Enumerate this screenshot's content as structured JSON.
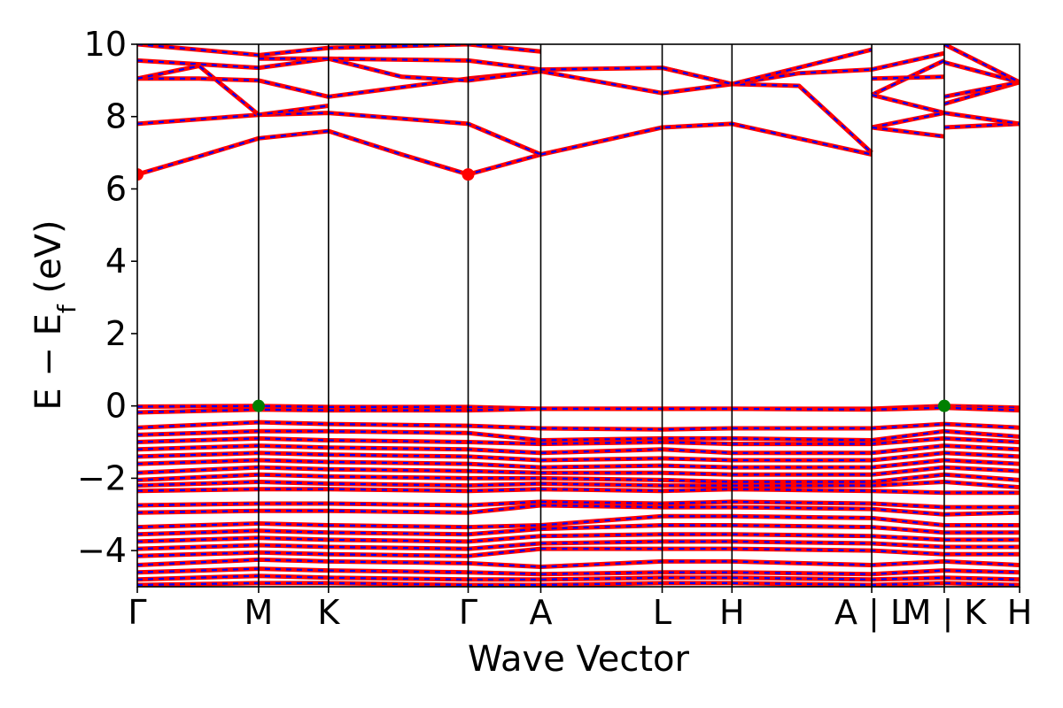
{
  "chart_data": {
    "type": "line",
    "title": "",
    "xlabel": "Wave Vector",
    "ylabel": "E − E_f (eV)",
    "ylabel_main": "E  −  E",
    "ylabel_sub": "f",
    "ylabel_tail": " (eV)",
    "ylim": [
      -5,
      10
    ],
    "yticks": [
      -4,
      -2,
      0,
      2,
      4,
      6,
      8,
      10
    ],
    "ytick_labels": [
      "−4",
      "−2",
      "0",
      "2",
      "4",
      "6",
      "8",
      "10"
    ],
    "kpath_ticks": [
      {
        "label": "Γ",
        "x": 0.0
      },
      {
        "label": "M",
        "x": 0.1375
      },
      {
        "label": "K",
        "x": 0.2167
      },
      {
        "label": "Γ",
        "x": 0.375
      },
      {
        "label": "A",
        "x": 0.4573
      },
      {
        "label": "L",
        "x": 0.5949
      },
      {
        "label": "H",
        "x": 0.674
      },
      {
        "label": "A | L",
        "x": 0.8324
      },
      {
        "label": "M | K",
        "x": 0.9146
      },
      {
        "label": "H",
        "x": 1.0
      }
    ],
    "series_colors": {
      "primary": "#ff0000",
      "secondary": "#0000ff",
      "vbm_marker": "#008000",
      "cbm_marker": "#ff0000"
    },
    "cbm_points": [
      {
        "x": 0.0,
        "y": 6.4
      },
      {
        "x": 0.375,
        "y": 6.4
      }
    ],
    "vbm_points": [
      {
        "x": 0.1375,
        "y": 0.0
      },
      {
        "x": 0.9146,
        "y": 0.0
      }
    ],
    "conduction_bands": [
      {
        "x": [
          0.0,
          0.07,
          0.1375,
          0.2167,
          0.3,
          0.375,
          0.4573
        ],
        "y": [
          6.4,
          6.9,
          7.4,
          7.6,
          6.95,
          6.4,
          6.95
        ]
      },
      {
        "x": [
          0.4573,
          0.5949,
          0.674,
          0.8324
        ],
        "y": [
          6.95,
          7.7,
          7.8,
          6.95
        ]
      },
      {
        "x": [
          0.0,
          0.1375,
          0.2167,
          0.375,
          0.4573
        ],
        "y": [
          7.8,
          8.05,
          8.1,
          7.8,
          6.95
        ]
      },
      {
        "x": [
          0.0,
          0.07,
          0.1375,
          0.2167,
          0.375,
          0.4573,
          0.5949,
          0.674,
          0.75,
          0.8324
        ],
        "y": [
          9.05,
          9.05,
          9.0,
          8.55,
          9.05,
          9.25,
          8.65,
          8.9,
          9.2,
          9.3
        ]
      },
      {
        "x": [
          0.0,
          0.1375,
          0.2167,
          0.375,
          0.4573,
          0.5949,
          0.674,
          0.75,
          0.8324
        ],
        "y": [
          9.55,
          9.35,
          9.6,
          9.55,
          9.3,
          9.35,
          8.9,
          8.85,
          7.0
        ]
      },
      {
        "x": [
          0.0,
          0.1375,
          0.2167,
          0.375,
          0.4573
        ],
        "y": [
          10.0,
          9.7,
          9.9,
          10.0,
          9.8
        ]
      },
      {
        "x": [
          0.0,
          0.07,
          0.1375,
          0.2167
        ],
        "y": [
          9.05,
          9.4,
          8.05,
          8.3
        ]
      },
      {
        "x": [
          0.1375,
          0.2167,
          0.3,
          0.375,
          0.4573
        ],
        "y": [
          9.6,
          9.6,
          9.1,
          9.0,
          9.25
        ]
      },
      {
        "x": [
          0.5949,
          0.674,
          0.8324
        ],
        "y": [
          9.35,
          8.9,
          9.85
        ]
      },
      {
        "x": [
          0.8324,
          0.9146
        ],
        "y": [
          9.3,
          9.75
        ]
      },
      {
        "x": [
          0.8324,
          0.9146
        ],
        "y": [
          8.6,
          9.55
        ]
      },
      {
        "x": [
          0.8324,
          0.9146
        ],
        "y": [
          8.6,
          8.1
        ]
      },
      {
        "x": [
          0.8324,
          0.9146
        ],
        "y": [
          7.7,
          8.1
        ]
      },
      {
        "x": [
          0.8324,
          0.9146
        ],
        "y": [
          7.7,
          7.45
        ]
      },
      {
        "x": [
          0.8324,
          0.9146
        ],
        "y": [
          9.05,
          9.1
        ]
      },
      {
        "x": [
          0.9146,
          1.0
        ],
        "y": [
          7.7,
          7.8
        ]
      },
      {
        "x": [
          0.9146,
          1.0
        ],
        "y": [
          8.1,
          7.8
        ]
      },
      {
        "x": [
          0.9146,
          1.0
        ],
        "y": [
          8.35,
          8.95
        ]
      },
      {
        "x": [
          0.9146,
          1.0
        ],
        "y": [
          8.55,
          8.95
        ]
      },
      {
        "x": [
          0.9146,
          1.0
        ],
        "y": [
          9.5,
          8.95
        ]
      },
      {
        "x": [
          0.9146,
          1.0
        ],
        "y": [
          10.0,
          8.95
        ]
      }
    ],
    "valence_bands": [
      {
        "x": [
          0.0,
          0.1375,
          0.2167,
          0.375,
          0.4573,
          0.5949,
          0.674,
          0.8324,
          0.9146,
          1.0
        ],
        "y": [
          -0.02,
          0.0,
          -0.03,
          -0.03,
          -0.08,
          -0.08,
          -0.08,
          -0.08,
          0.0,
          -0.05
        ]
      },
      {
        "x": [
          0.0,
          0.1375,
          0.2167,
          0.375,
          0.4573,
          0.5949,
          0.674,
          0.8324,
          0.9146,
          1.0
        ],
        "y": [
          -0.18,
          -0.1,
          -0.12,
          -0.12,
          -0.08,
          -0.08,
          -0.08,
          -0.1,
          -0.05,
          -0.12
        ]
      },
      {
        "x": [
          0.0,
          0.1375,
          0.2167,
          0.375,
          0.4573,
          0.5949,
          0.674,
          0.8324,
          0.9146,
          1.0
        ],
        "y": [
          -0.6,
          -0.45,
          -0.5,
          -0.55,
          -0.62,
          -0.65,
          -0.62,
          -0.62,
          -0.5,
          -0.6
        ]
      },
      {
        "x": [
          0.0,
          0.1375,
          0.2167,
          0.375,
          0.4573,
          0.5949,
          0.674,
          0.8324,
          0.9146,
          1.0
        ],
        "y": [
          -0.8,
          -0.7,
          -0.7,
          -0.75,
          -0.95,
          -0.9,
          -0.9,
          -0.95,
          -0.7,
          -0.85
        ]
      },
      {
        "x": [
          0.0,
          0.1375,
          0.2167,
          0.375,
          0.4573,
          0.5949,
          0.674,
          0.8324,
          0.9146,
          1.0
        ],
        "y": [
          -1.0,
          -0.9,
          -0.95,
          -1.0,
          -1.05,
          -1.0,
          -1.05,
          -1.05,
          -0.9,
          -1.0
        ]
      },
      {
        "x": [
          0.0,
          0.1375,
          0.2167,
          0.375,
          0.4573,
          0.5949,
          0.674,
          0.8324,
          0.9146,
          1.0
        ],
        "y": [
          -1.2,
          -1.1,
          -1.15,
          -1.2,
          -1.3,
          -1.2,
          -1.3,
          -1.3,
          -1.1,
          -1.2
        ]
      },
      {
        "x": [
          0.0,
          0.1375,
          0.2167,
          0.375,
          0.4573,
          0.5949,
          0.674,
          0.8324,
          0.9146,
          1.0
        ],
        "y": [
          -1.4,
          -1.3,
          -1.35,
          -1.4,
          -1.5,
          -1.45,
          -1.5,
          -1.5,
          -1.3,
          -1.4
        ]
      },
      {
        "x": [
          0.0,
          0.1375,
          0.2167,
          0.375,
          0.4573,
          0.5949,
          0.674,
          0.8324,
          0.9146,
          1.0
        ],
        "y": [
          -1.6,
          -1.5,
          -1.55,
          -1.6,
          -1.7,
          -1.65,
          -1.7,
          -1.7,
          -1.5,
          -1.6
        ]
      },
      {
        "x": [
          0.0,
          0.1375,
          0.2167,
          0.375,
          0.4573,
          0.5949,
          0.674,
          0.8324,
          0.9146,
          1.0
        ],
        "y": [
          -1.85,
          -1.7,
          -1.75,
          -1.8,
          -1.85,
          -1.85,
          -1.9,
          -1.9,
          -1.7,
          -1.8
        ]
      },
      {
        "x": [
          0.0,
          0.1375,
          0.2167,
          0.375,
          0.4573,
          0.5949,
          0.674,
          0.8324,
          0.9146,
          1.0
        ],
        "y": [
          -2.05,
          -1.9,
          -1.95,
          -2.0,
          -2.0,
          -2.05,
          -2.1,
          -2.1,
          -1.9,
          -2.05
        ]
      },
      {
        "x": [
          0.0,
          0.1375,
          0.2167,
          0.375,
          0.4573,
          0.5949,
          0.674,
          0.8324,
          0.9146,
          1.0
        ],
        "y": [
          -2.2,
          -2.1,
          -2.15,
          -2.2,
          -2.15,
          -2.2,
          -2.2,
          -2.2,
          -2.1,
          -2.25
        ]
      },
      {
        "x": [
          0.0,
          0.1375,
          0.2167,
          0.375,
          0.4573,
          0.5949,
          0.674,
          0.8324,
          0.9146,
          1.0
        ],
        "y": [
          -2.35,
          -2.3,
          -2.3,
          -2.35,
          -2.3,
          -2.35,
          -2.3,
          -2.35,
          -2.4,
          -2.4
        ]
      },
      {
        "x": [
          0.0,
          0.1375,
          0.2167,
          0.375,
          0.4573,
          0.5949,
          0.674,
          0.8324,
          0.9146,
          1.0
        ],
        "y": [
          -2.75,
          -2.7,
          -2.7,
          -2.75,
          -2.65,
          -2.7,
          -2.65,
          -2.7,
          -2.8,
          -2.8
        ]
      },
      {
        "x": [
          0.0,
          0.1375,
          0.2167,
          0.375,
          0.4573,
          0.5949,
          0.674,
          0.8324,
          0.9146,
          1.0
        ],
        "y": [
          -2.95,
          -2.9,
          -2.9,
          -2.95,
          -2.75,
          -2.8,
          -2.8,
          -2.85,
          -3.0,
          -2.95
        ]
      },
      {
        "x": [
          0.0,
          0.1375,
          0.2167,
          0.375,
          0.4573,
          0.5949,
          0.674,
          0.8324,
          0.9146,
          1.0
        ],
        "y": [
          -3.35,
          -3.25,
          -3.3,
          -3.35,
          -3.3,
          -3.05,
          -3.05,
          -3.1,
          -3.3,
          -3.3
        ]
      },
      {
        "x": [
          0.0,
          0.1375,
          0.2167,
          0.375,
          0.4573,
          0.5949,
          0.674,
          0.8324,
          0.9146,
          1.0
        ],
        "y": [
          -3.55,
          -3.45,
          -3.5,
          -3.55,
          -3.4,
          -3.3,
          -3.3,
          -3.35,
          -3.5,
          -3.5
        ]
      },
      {
        "x": [
          0.0,
          0.1375,
          0.2167,
          0.375,
          0.4573,
          0.5949,
          0.674,
          0.8324,
          0.9146,
          1.0
        ],
        "y": [
          -3.75,
          -3.65,
          -3.7,
          -3.75,
          -3.6,
          -3.55,
          -3.55,
          -3.6,
          -3.7,
          -3.7
        ]
      },
      {
        "x": [
          0.0,
          0.1375,
          0.2167,
          0.375,
          0.4573,
          0.5949,
          0.674,
          0.8324,
          0.9146,
          1.0
        ],
        "y": [
          -3.95,
          -3.85,
          -3.9,
          -3.95,
          -3.8,
          -3.75,
          -3.75,
          -3.8,
          -3.9,
          -3.9
        ]
      },
      {
        "x": [
          0.0,
          0.1375,
          0.2167,
          0.375,
          0.4573,
          0.5949,
          0.674,
          0.8324,
          0.9146,
          1.0
        ],
        "y": [
          -4.15,
          -4.05,
          -4.1,
          -4.15,
          -3.95,
          -3.95,
          -3.95,
          -4.0,
          -4.1,
          -4.1
        ]
      },
      {
        "x": [
          0.0,
          0.1375,
          0.2167,
          0.375,
          0.4573,
          0.5949,
          0.674,
          0.8324,
          0.9146,
          1.0
        ],
        "y": [
          -4.4,
          -4.25,
          -4.3,
          -4.35,
          -4.45,
          -4.3,
          -4.3,
          -4.4,
          -4.3,
          -4.4
        ]
      },
      {
        "x": [
          0.0,
          0.1375,
          0.2167,
          0.375,
          0.4573,
          0.5949,
          0.674,
          0.8324,
          0.9146,
          1.0
        ],
        "y": [
          -4.6,
          -4.5,
          -4.55,
          -4.6,
          -4.65,
          -4.6,
          -4.6,
          -4.65,
          -4.55,
          -4.6
        ]
      },
      {
        "x": [
          0.0,
          0.1375,
          0.2167,
          0.375,
          0.4573,
          0.5949,
          0.674,
          0.8324,
          0.9146,
          1.0
        ],
        "y": [
          -4.8,
          -4.7,
          -4.75,
          -4.8,
          -4.8,
          -4.75,
          -4.75,
          -4.8,
          -4.75,
          -4.8
        ]
      },
      {
        "x": [
          0.0,
          0.1375,
          0.2167,
          0.375,
          0.4573,
          0.5949,
          0.674,
          0.8324,
          0.9146,
          1.0
        ],
        "y": [
          -4.95,
          -4.9,
          -4.9,
          -4.95,
          -4.95,
          -4.9,
          -4.9,
          -4.95,
          -4.9,
          -4.95
        ]
      }
    ]
  }
}
